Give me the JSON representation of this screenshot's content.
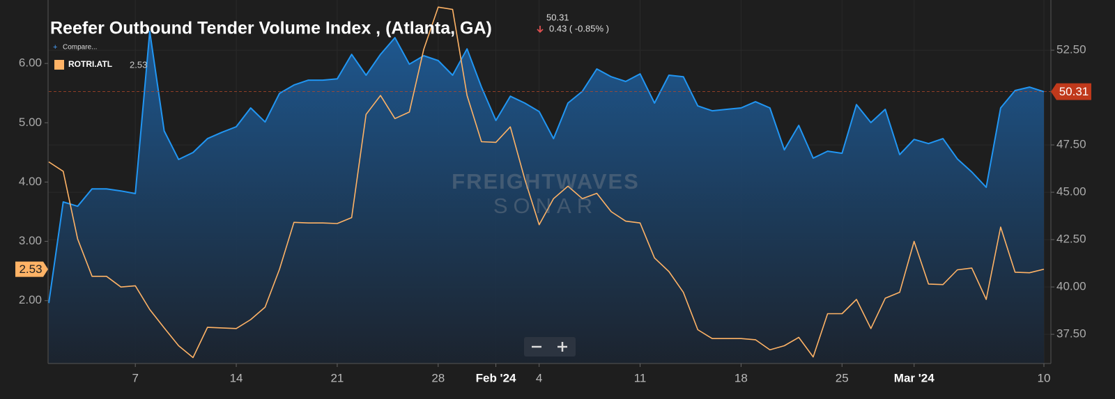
{
  "chart_data": {
    "type": "line",
    "title": "Reefer Outbound Tender Volume Index , (Atlanta, GA)",
    "change": "0.43 ( -0.85% )",
    "compare": "Compare...",
    "watermark": [
      "FREIGHTWAVES",
      "SONAR"
    ],
    "x": [
      "2024-01-01",
      "2024-01-02",
      "2024-01-03",
      "2024-01-04",
      "2024-01-05",
      "2024-01-06",
      "2024-01-07",
      "2024-01-08",
      "2024-01-09",
      "2024-01-10",
      "2024-01-11",
      "2024-01-12",
      "2024-01-13",
      "2024-01-14",
      "2024-01-15",
      "2024-01-16",
      "2024-01-17",
      "2024-01-18",
      "2024-01-19",
      "2024-01-20",
      "2024-01-21",
      "2024-01-22",
      "2024-01-23",
      "2024-01-24",
      "2024-01-25",
      "2024-01-26",
      "2024-01-27",
      "2024-01-28",
      "2024-01-29",
      "2024-01-30",
      "2024-01-31",
      "2024-02-01",
      "2024-02-02",
      "2024-02-03",
      "2024-02-04",
      "2024-02-05",
      "2024-02-06",
      "2024-02-07",
      "2024-02-08",
      "2024-02-09",
      "2024-02-10",
      "2024-02-11",
      "2024-02-12",
      "2024-02-13",
      "2024-02-14",
      "2024-02-15",
      "2024-02-16",
      "2024-02-17",
      "2024-02-18",
      "2024-02-19",
      "2024-02-20",
      "2024-02-21",
      "2024-02-22",
      "2024-02-23",
      "2024-02-24",
      "2024-02-25",
      "2024-02-26",
      "2024-02-27",
      "2024-02-28",
      "2024-02-29",
      "2024-03-01",
      "2024-03-02",
      "2024-03-03",
      "2024-03-04",
      "2024-03-05",
      "2024-03-06",
      "2024-03-07",
      "2024-03-08",
      "2024-03-09",
      "2024-03-10"
    ],
    "xlim": [
      "2024-01-01",
      "2024-03-10"
    ],
    "xticks": [
      {
        "value": "2024-01-07",
        "label": "7"
      },
      {
        "value": "2024-01-14",
        "label": "14"
      },
      {
        "value": "2024-01-21",
        "label": "21"
      },
      {
        "value": "2024-01-28",
        "label": "28"
      },
      {
        "value": "2024-02-01",
        "label": "Feb '24"
      },
      {
        "value": "2024-02-04",
        "label": "4"
      },
      {
        "value": "2024-02-11",
        "label": "11"
      },
      {
        "value": "2024-02-18",
        "label": "18"
      },
      {
        "value": "2024-02-25",
        "label": "25"
      },
      {
        "value": "2024-03-01",
        "label": "Mar '24"
      },
      {
        "value": "2024-03-10",
        "label": "10"
      }
    ],
    "ylim": [
      0.94,
      7.07
    ],
    "yticks": [
      {
        "value": 2,
        "label": "2.00"
      },
      {
        "value": 3,
        "label": "3.00"
      },
      {
        "value": 4,
        "label": "4.00"
      },
      {
        "value": 5,
        "label": "5.00"
      },
      {
        "value": 6,
        "label": "6.00"
      }
    ],
    "y2lim": [
      35.96,
      55.15
    ],
    "y2ticks": [
      {
        "value": 37.5,
        "label": "37.50"
      },
      {
        "value": 40,
        "label": "40.00"
      },
      {
        "value": 42.5,
        "label": "42.50"
      },
      {
        "value": 45,
        "label": "45.00"
      },
      {
        "value": 47.5,
        "label": "47.50"
      },
      {
        "value": 52.5,
        "label": "52.50"
      }
    ],
    "series": [
      {
        "color": "#2196f3",
        "axis": "y2",
        "values": [
          39.15,
          44.49,
          44.26,
          45.18,
          45.18,
          45.07,
          44.93,
          53.49,
          48.24,
          46.73,
          47.1,
          47.83,
          48.16,
          48.46,
          49.45,
          48.71,
          50.22,
          50.66,
          50.92,
          50.92,
          50.99,
          52.28,
          51.18,
          52.28,
          53.16,
          51.76,
          52.21,
          51.95,
          51.18,
          52.57,
          50.55,
          48.79,
          50.07,
          49.71,
          49.26,
          47.83,
          49.71,
          50.33,
          51.51,
          51.1,
          50.85,
          51.25,
          49.71,
          51.18,
          51.1,
          49.56,
          49.3,
          49.38,
          49.45,
          49.78,
          49.45,
          47.24,
          48.53,
          46.8,
          47.17,
          47.06,
          49.63,
          48.68,
          49.38,
          46.99,
          47.79,
          47.57,
          47.83,
          46.76,
          46.07,
          45.26,
          49.45,
          50.37,
          50.55,
          50.31
        ]
      },
      {
        "name": "ROTRI.ATL",
        "color": "#ffb366",
        "values": [
          4.34,
          4.18,
          3.04,
          2.41,
          2.41,
          2.23,
          2.25,
          1.85,
          1.54,
          1.24,
          1.04,
          1.55,
          1.54,
          1.53,
          1.68,
          1.89,
          2.53,
          3.32,
          3.31,
          3.31,
          3.3,
          3.4,
          5.14,
          5.46,
          5.07,
          5.18,
          6.24,
          6.95,
          6.91,
          5.46,
          4.68,
          4.67,
          4.93,
          4.05,
          3.28,
          3.72,
          3.93,
          3.72,
          3.81,
          3.5,
          3.34,
          3.31,
          2.72,
          2.49,
          2.14,
          1.51,
          1.36,
          1.36,
          1.36,
          1.34,
          1.17,
          1.24,
          1.38,
          1.05,
          1.78,
          1.78,
          2.02,
          1.53,
          2.04,
          2.14,
          3.0,
          2.28,
          2.27,
          2.52,
          2.55,
          2.02,
          3.24,
          2.48,
          2.47,
          2.53
        ]
      }
    ]
  }
}
